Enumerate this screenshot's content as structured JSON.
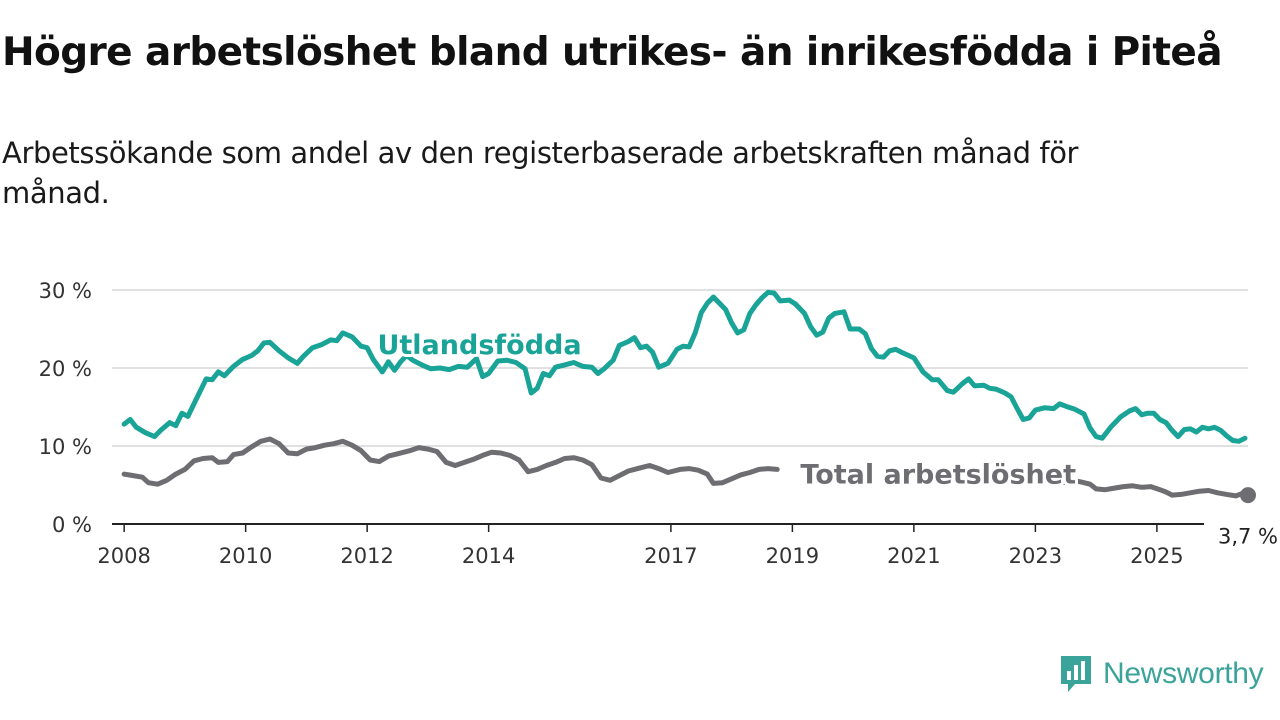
{
  "title": "Högre arbetslöshet bland utrikes- än inrikesfödda i Piteå",
  "subtitle": "Arbetssökande som andel av den registerbaserade arbetskraften månad för månad.",
  "logo_text": "Newsworthy",
  "chart_data": {
    "type": "line",
    "title": "Högre arbetslöshet bland utrikes- än inrikesfödda i Piteå",
    "subtitle": "Arbetssökande som andel av den registerbaserade arbetskraften månad för månad.",
    "xlabel": "",
    "ylabel": "",
    "ylim": [
      0,
      30
    ],
    "xlim": [
      2007.8,
      2026.5
    ],
    "y_ticks": [
      0,
      10,
      20,
      30
    ],
    "y_tick_labels": [
      "0 %",
      "10 %",
      "20 %",
      "30 %"
    ],
    "x_ticks": [
      2008,
      2010,
      2012,
      2014,
      2017,
      2019,
      2021,
      2023,
      2025
    ],
    "grid": true,
    "legend": "inline labels",
    "colors": {
      "utlandsfodda": "#1aa397",
      "total": "#6e6e72"
    },
    "series": [
      {
        "name": "Utlandsfödda",
        "color": "#1aa397",
        "points": [
          [
            2008.0,
            12.8
          ],
          [
            2008.1,
            13.4
          ],
          [
            2008.2,
            12.4
          ],
          [
            2008.35,
            11.7
          ],
          [
            2008.5,
            11.2
          ],
          [
            2008.6,
            12.0
          ],
          [
            2008.75,
            13.0
          ],
          [
            2008.85,
            12.6
          ],
          [
            2008.95,
            14.2
          ],
          [
            2009.05,
            13.8
          ],
          [
            2009.2,
            16.2
          ],
          [
            2009.35,
            18.6
          ],
          [
            2009.45,
            18.5
          ],
          [
            2009.55,
            19.5
          ],
          [
            2009.65,
            19.0
          ],
          [
            2009.8,
            20.2
          ],
          [
            2009.95,
            21.1
          ],
          [
            2010.1,
            21.6
          ],
          [
            2010.2,
            22.2
          ],
          [
            2010.3,
            23.2
          ],
          [
            2010.4,
            23.3
          ],
          [
            2010.55,
            22.2
          ],
          [
            2010.7,
            21.3
          ],
          [
            2010.85,
            20.6
          ],
          [
            2010.95,
            21.5
          ],
          [
            2011.1,
            22.6
          ],
          [
            2011.25,
            23.0
          ],
          [
            2011.4,
            23.6
          ],
          [
            2011.5,
            23.5
          ],
          [
            2011.6,
            24.5
          ],
          [
            2011.75,
            24.0
          ],
          [
            2011.9,
            22.8
          ],
          [
            2012.0,
            22.6
          ],
          [
            2012.1,
            21.1
          ],
          [
            2012.25,
            19.5
          ],
          [
            2012.35,
            20.8
          ],
          [
            2012.45,
            19.7
          ],
          [
            2012.55,
            20.8
          ],
          [
            2012.65,
            21.6
          ],
          [
            2012.75,
            21.0
          ],
          [
            2012.9,
            20.4
          ],
          [
            2013.05,
            19.9
          ],
          [
            2013.2,
            20.0
          ],
          [
            2013.35,
            19.8
          ],
          [
            2013.5,
            20.2
          ],
          [
            2013.65,
            20.1
          ],
          [
            2013.8,
            21.2
          ],
          [
            2013.9,
            18.9
          ],
          [
            2014.0,
            19.3
          ],
          [
            2014.15,
            20.9
          ],
          [
            2014.3,
            21.0
          ],
          [
            2014.45,
            20.7
          ],
          [
            2014.6,
            19.9
          ],
          [
            2014.7,
            16.8
          ],
          [
            2014.8,
            17.4
          ],
          [
            2014.9,
            19.3
          ],
          [
            2015.0,
            19.0
          ],
          [
            2015.1,
            20.1
          ],
          [
            2015.25,
            20.4
          ],
          [
            2015.4,
            20.7
          ],
          [
            2015.55,
            20.2
          ],
          [
            2015.7,
            20.1
          ],
          [
            2015.8,
            19.3
          ],
          [
            2015.9,
            19.9
          ],
          [
            2016.05,
            21.0
          ],
          [
            2016.15,
            22.9
          ],
          [
            2016.3,
            23.4
          ],
          [
            2016.4,
            23.9
          ],
          [
            2016.5,
            22.6
          ],
          [
            2016.6,
            22.8
          ],
          [
            2016.7,
            22.0
          ],
          [
            2016.8,
            20.1
          ],
          [
            2016.95,
            20.6
          ],
          [
            2017.1,
            22.4
          ],
          [
            2017.2,
            22.8
          ],
          [
            2017.3,
            22.7
          ],
          [
            2017.4,
            24.5
          ],
          [
            2017.5,
            27.1
          ],
          [
            2017.6,
            28.3
          ],
          [
            2017.7,
            29.1
          ],
          [
            2017.8,
            28.3
          ],
          [
            2017.9,
            27.5
          ],
          [
            2018.0,
            25.8
          ],
          [
            2018.1,
            24.5
          ],
          [
            2018.2,
            24.9
          ],
          [
            2018.3,
            27.0
          ],
          [
            2018.4,
            28.1
          ],
          [
            2018.5,
            29.0
          ],
          [
            2018.6,
            29.7
          ],
          [
            2018.7,
            29.6
          ],
          [
            2018.8,
            28.6
          ],
          [
            2018.95,
            28.7
          ],
          [
            2019.05,
            28.2
          ],
          [
            2019.2,
            27.0
          ],
          [
            2019.3,
            25.3
          ],
          [
            2019.4,
            24.2
          ],
          [
            2019.5,
            24.6
          ],
          [
            2019.6,
            26.4
          ],
          [
            2019.7,
            27.0
          ],
          [
            2019.85,
            27.2
          ],
          [
            2019.95,
            25.0
          ],
          [
            2020.1,
            25.0
          ],
          [
            2020.2,
            24.4
          ],
          [
            2020.3,
            22.5
          ],
          [
            2020.4,
            21.5
          ],
          [
            2020.5,
            21.4
          ],
          [
            2020.6,
            22.2
          ],
          [
            2020.7,
            22.4
          ],
          [
            2020.8,
            22.0
          ],
          [
            2021.0,
            21.3
          ],
          [
            2021.15,
            19.5
          ],
          [
            2021.3,
            18.5
          ],
          [
            2021.4,
            18.5
          ],
          [
            2021.55,
            17.1
          ],
          [
            2021.65,
            16.9
          ],
          [
            2021.8,
            18.0
          ],
          [
            2021.9,
            18.6
          ],
          [
            2022.0,
            17.7
          ],
          [
            2022.15,
            17.8
          ],
          [
            2022.25,
            17.4
          ],
          [
            2022.35,
            17.3
          ],
          [
            2022.5,
            16.8
          ],
          [
            2022.6,
            16.3
          ],
          [
            2022.7,
            14.8
          ],
          [
            2022.8,
            13.4
          ],
          [
            2022.9,
            13.6
          ],
          [
            2023.0,
            14.6
          ],
          [
            2023.15,
            14.9
          ],
          [
            2023.3,
            14.8
          ],
          [
            2023.4,
            15.4
          ],
          [
            2023.5,
            15.1
          ],
          [
            2023.65,
            14.7
          ],
          [
            2023.8,
            14.1
          ],
          [
            2023.9,
            12.3
          ],
          [
            2024.0,
            11.2
          ],
          [
            2024.1,
            11.0
          ],
          [
            2024.25,
            12.5
          ],
          [
            2024.4,
            13.7
          ],
          [
            2024.55,
            14.5
          ],
          [
            2024.65,
            14.8
          ],
          [
            2024.75,
            14.0
          ],
          [
            2024.85,
            14.2
          ],
          [
            2024.95,
            14.2
          ],
          [
            2025.05,
            13.4
          ],
          [
            2025.15,
            13.0
          ],
          [
            2025.25,
            12.0
          ],
          [
            2025.35,
            11.2
          ],
          [
            2025.45,
            12.1
          ],
          [
            2025.55,
            12.2
          ],
          [
            2025.65,
            11.8
          ],
          [
            2025.75,
            12.4
          ],
          [
            2025.85,
            12.2
          ],
          [
            2025.95,
            12.4
          ],
          [
            2026.05,
            12.0
          ],
          [
            2026.15,
            11.3
          ],
          [
            2026.25,
            10.7
          ],
          [
            2026.35,
            10.6
          ],
          [
            2026.45,
            11.0
          ]
        ]
      },
      {
        "name": "Total arbetslöshet",
        "color": "#6e6e72",
        "end_value": "3,7 %",
        "points": [
          [
            2008.0,
            6.4
          ],
          [
            2008.15,
            6.2
          ],
          [
            2008.3,
            6.0
          ],
          [
            2008.4,
            5.3
          ],
          [
            2008.55,
            5.1
          ],
          [
            2008.7,
            5.6
          ],
          [
            2008.85,
            6.4
          ],
          [
            2009.0,
            7.0
          ],
          [
            2009.15,
            8.1
          ],
          [
            2009.3,
            8.4
          ],
          [
            2009.45,
            8.5
          ],
          [
            2009.55,
            7.9
          ],
          [
            2009.7,
            8.0
          ],
          [
            2009.8,
            8.9
          ],
          [
            2009.95,
            9.1
          ],
          [
            2010.1,
            9.9
          ],
          [
            2010.25,
            10.6
          ],
          [
            2010.4,
            10.9
          ],
          [
            2010.55,
            10.3
          ],
          [
            2010.7,
            9.1
          ],
          [
            2010.85,
            9.0
          ],
          [
            2011.0,
            9.6
          ],
          [
            2011.15,
            9.8
          ],
          [
            2011.3,
            10.1
          ],
          [
            2011.45,
            10.3
          ],
          [
            2011.6,
            10.6
          ],
          [
            2011.75,
            10.1
          ],
          [
            2011.9,
            9.4
          ],
          [
            2012.05,
            8.2
          ],
          [
            2012.2,
            8.0
          ],
          [
            2012.35,
            8.7
          ],
          [
            2012.5,
            9.0
          ],
          [
            2012.7,
            9.4
          ],
          [
            2012.85,
            9.8
          ],
          [
            2013.0,
            9.6
          ],
          [
            2013.15,
            9.3
          ],
          [
            2013.3,
            7.9
          ],
          [
            2013.45,
            7.5
          ],
          [
            2013.6,
            7.9
          ],
          [
            2013.75,
            8.3
          ],
          [
            2013.9,
            8.8
          ],
          [
            2014.05,
            9.2
          ],
          [
            2014.2,
            9.1
          ],
          [
            2014.35,
            8.8
          ],
          [
            2014.5,
            8.2
          ],
          [
            2014.65,
            6.7
          ],
          [
            2014.8,
            7.0
          ],
          [
            2014.95,
            7.5
          ],
          [
            2015.1,
            7.9
          ],
          [
            2015.25,
            8.4
          ],
          [
            2015.4,
            8.5
          ],
          [
            2015.55,
            8.2
          ],
          [
            2015.7,
            7.6
          ],
          [
            2015.85,
            5.9
          ],
          [
            2016.0,
            5.6
          ],
          [
            2016.15,
            6.2
          ],
          [
            2016.3,
            6.8
          ],
          [
            2016.5,
            7.2
          ],
          [
            2016.65,
            7.5
          ],
          [
            2016.8,
            7.1
          ],
          [
            2016.95,
            6.6
          ],
          [
            2017.05,
            6.8
          ],
          [
            2017.15,
            7.0
          ],
          [
            2017.3,
            7.1
          ],
          [
            2017.45,
            6.9
          ],
          [
            2017.6,
            6.4
          ],
          [
            2017.7,
            5.2
          ],
          [
            2017.85,
            5.3
          ],
          [
            2018.0,
            5.8
          ],
          [
            2018.15,
            6.3
          ],
          [
            2018.3,
            6.6
          ],
          [
            2018.45,
            7.0
          ],
          [
            2018.6,
            7.1
          ],
          [
            2018.75,
            7.0
          ]
        ],
        "points_b": [
          [
            2023.45,
            5.3
          ],
          [
            2023.6,
            5.6
          ],
          [
            2023.75,
            5.4
          ],
          [
            2023.9,
            5.1
          ],
          [
            2024.0,
            4.5
          ],
          [
            2024.15,
            4.4
          ],
          [
            2024.3,
            4.6
          ],
          [
            2024.45,
            4.8
          ],
          [
            2024.6,
            4.9
          ],
          [
            2024.75,
            4.7
          ],
          [
            2024.9,
            4.8
          ],
          [
            2025.05,
            4.4
          ],
          [
            2025.15,
            4.1
          ],
          [
            2025.25,
            3.7
          ],
          [
            2025.4,
            3.8
          ],
          [
            2025.55,
            4.0
          ],
          [
            2025.7,
            4.2
          ],
          [
            2025.85,
            4.3
          ],
          [
            2026.0,
            4.0
          ],
          [
            2026.15,
            3.8
          ],
          [
            2026.3,
            3.6
          ],
          [
            2026.4,
            3.9
          ],
          [
            2026.5,
            3.7
          ]
        ]
      }
    ],
    "annotations": [
      {
        "text": "Utlandsfödda",
        "x": 2013.85,
        "y": 21.8,
        "series": 0
      },
      {
        "text": "Total arbetslöshet",
        "x": 2021.4,
        "y": 5.2,
        "series": 1
      },
      {
        "text": "3,7 %",
        "x": 2026.5,
        "y": -2.0,
        "series": 1
      }
    ]
  }
}
